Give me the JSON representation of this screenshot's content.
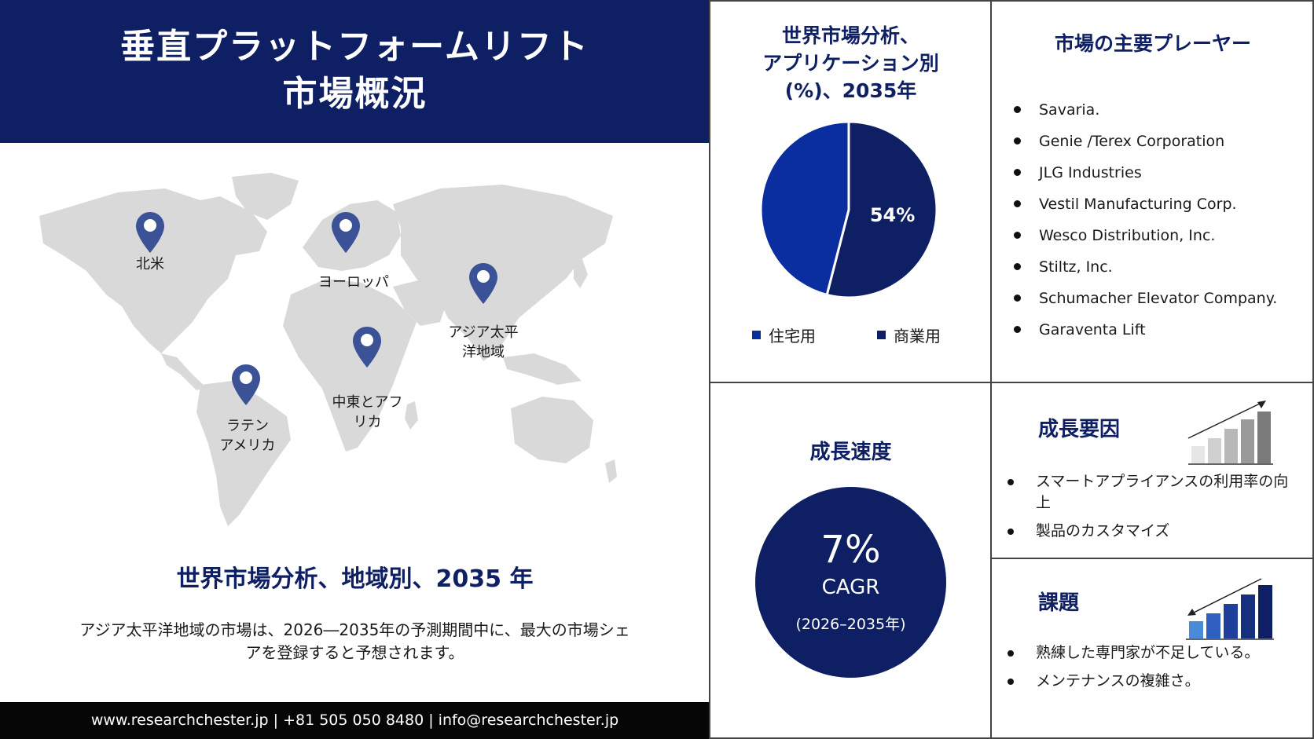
{
  "title": {
    "line1": "垂直プラットフォームリフト",
    "line2": "市場概況"
  },
  "regions": {
    "north_america": "北米",
    "europe": "ヨーロッパ",
    "asia_pacific": "アジア太平\n洋地域",
    "middle_east_africa": "中東とアフ\nリカ",
    "latin_america": "ラテン\nアメリカ"
  },
  "region_heading": "世界市場分析、地域別、2035 年",
  "region_desc": "アジア太平洋地域の市場は、2026―2035年の予測期間中に、最大の市場シェアを登録すると予想されます。",
  "footer": "www.researchchester.jp | +81 505 050 8480 | info@researchchester.jp",
  "pie": {
    "title_line1": "世界市場分析、",
    "title_line2": "アプリケーション別",
    "title_line3": "(%)、2035年",
    "label_value": "54%"
  },
  "chart_data": {
    "type": "pie",
    "categories": [
      "住宅用",
      "商業用"
    ],
    "values": [
      46,
      54
    ],
    "colors": [
      "#0a2ea0",
      "#0f1f63"
    ],
    "data_labels": [
      "",
      "54%"
    ]
  },
  "legend": {
    "item1": "住宅用",
    "item2": "商業用"
  },
  "players": {
    "title": "市場の主要プレーヤー",
    "items": [
      "Savaria.",
      "Genie /Terex Corporation",
      "JLG Industries",
      "Vestil Manufacturing  Corp.",
      "Wesco Distribution, Inc.",
      "Stiltz, Inc.",
      "Schumacher Elevator Company.",
      "Garaventa Lift"
    ]
  },
  "growth_speed": {
    "title": "成長速度",
    "value": "7%",
    "label": "CAGR",
    "range": "(2026–2035年)"
  },
  "growth_factors": {
    "title": "成長要因",
    "items": [
      "スマートアプライアンスの利用率の向上",
      "製品のカスタマイズ"
    ]
  },
  "challenges": {
    "title": "課題",
    "items": [
      "熟練した専門家が不足している。",
      "メンテナンスの複雑さ。"
    ]
  },
  "icons": {
    "pin": "location-pin-icon",
    "growth": "rising-bar-chart-icon",
    "challenge": "falling-bar-chart-icon",
    "bullet": "bullet-icon"
  }
}
